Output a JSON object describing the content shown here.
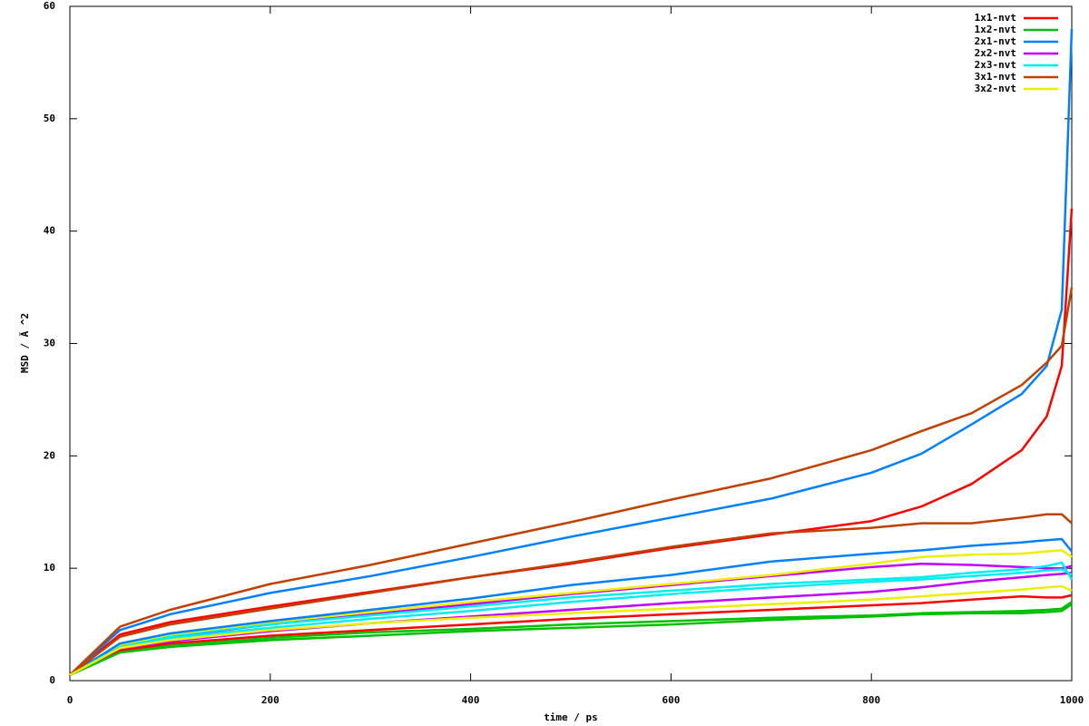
{
  "chart_data": {
    "type": "line",
    "x_label": "time / ps",
    "y_label": "MSD / Ă ^2",
    "x": [
      0,
      50,
      100,
      200,
      300,
      400,
      500,
      600,
      700,
      800,
      850,
      900,
      950,
      975,
      990,
      1000
    ],
    "xlim": [
      0,
      1000
    ],
    "xticks": [
      0,
      200,
      400,
      600,
      800,
      1000
    ],
    "ylim": [
      0,
      60
    ],
    "yticks": [
      0,
      10,
      20,
      30,
      40,
      50,
      60
    ],
    "grid": false,
    "legend": "top-right",
    "series": [
      {
        "name": "1x1-nvt",
        "color": "#ff0000",
        "values": [
          0.5,
          4.1,
          5.2,
          6.6,
          7.9,
          9.2,
          10.4,
          11.8,
          13.0,
          14.2,
          15.5,
          17.5,
          20.5,
          23.5,
          28,
          42
        ]
      },
      {
        "name": "1x2-nvt",
        "color": "#00c000",
        "values": [
          0.5,
          2.6,
          3.1,
          3.8,
          4.3,
          4.6,
          5.0,
          5.3,
          5.6,
          5.8,
          6.0,
          6.1,
          6.2,
          6.3,
          6.4,
          7
        ]
      },
      {
        "name": "2x1-nvt",
        "color": "#0080ff",
        "values": [
          0.5,
          4.5,
          5.9,
          7.8,
          9.3,
          11,
          12.8,
          14.5,
          16.2,
          18.5,
          20.2,
          22.8,
          25.5,
          28,
          33,
          58
        ]
      },
      {
        "name": "2x2-nvt",
        "color": "#c000ff",
        "values": [
          0.5,
          3.1,
          3.9,
          5.0,
          5.9,
          6.8,
          7.7,
          8.5,
          9.3,
          10.1,
          10.4,
          10.3,
          10.1,
          10.0,
          10,
          10.2
        ]
      },
      {
        "name": "2x3-nvt",
        "color": "#00eeee",
        "values": [
          0.5,
          3.2,
          4.0,
          5.0,
          5.8,
          6.6,
          7.4,
          8.0,
          8.6,
          9.0,
          9.2,
          9.6,
          9.9,
          10.2,
          10.5,
          9
        ]
      },
      {
        "name": "3x1-nvt",
        "color": "#c04000",
        "values": [
          0.5,
          4.8,
          6.3,
          8.6,
          10.3,
          12.2,
          14.1,
          16.1,
          18.0,
          20.5,
          22.2,
          23.8,
          26.3,
          28.3,
          29.8,
          35
        ]
      },
      {
        "name": "3x2-nvt",
        "color": "#eeee00",
        "values": [
          0.5,
          3.2,
          4.1,
          5.2,
          6.1,
          7.0,
          7.8,
          8.6,
          9.4,
          10.4,
          11.0,
          11.2,
          11.3,
          11.5,
          11.6,
          11
        ]
      },
      {
        "color": "#ff0000",
        "values": [
          0.5,
          2.7,
          3.3,
          4.0,
          4.5,
          5.0,
          5.5,
          5.9,
          6.3,
          6.7,
          6.9,
          7.2,
          7.5,
          7.4,
          7.4,
          7.6
        ]
      },
      {
        "color": "#00c000",
        "values": [
          0.5,
          2.5,
          3.0,
          3.6,
          4.0,
          4.4,
          4.7,
          5.0,
          5.4,
          5.7,
          5.9,
          6.0,
          6.0,
          6.1,
          6.2,
          6.8
        ]
      },
      {
        "color": "#0080ff",
        "values": [
          0.5,
          3.3,
          4.2,
          5.3,
          6.3,
          7.3,
          8.5,
          9.4,
          10.6,
          11.3,
          11.6,
          12,
          12.3,
          12.5,
          12.6,
          11.5
        ]
      },
      {
        "color": "#c000ff",
        "values": [
          0.5,
          2.9,
          3.5,
          4.4,
          5.1,
          5.7,
          6.3,
          6.9,
          7.4,
          7.9,
          8.3,
          8.8,
          9.2,
          9.4,
          9.5,
          9.6
        ]
      },
      {
        "color": "#00eeee",
        "values": [
          0.5,
          3.0,
          3.8,
          4.7,
          5.5,
          6.2,
          7,
          7.7,
          8.3,
          8.8,
          9,
          9.3,
          9.6,
          9.8,
          9.9,
          9.4
        ]
      },
      {
        "color": "#c04000",
        "values": [
          0.5,
          3.9,
          5.0,
          6.4,
          7.8,
          9.2,
          10.5,
          11.9,
          13.1,
          13.6,
          14,
          14,
          14.5,
          14.8,
          14.8,
          14
        ]
      },
      {
        "color": "#eeee00",
        "values": [
          0.5,
          2.9,
          3.6,
          4.5,
          5.1,
          5.6,
          6.0,
          6.4,
          6.8,
          7.2,
          7.5,
          7.8,
          8.1,
          8.3,
          8.4,
          8
        ]
      }
    ]
  }
}
